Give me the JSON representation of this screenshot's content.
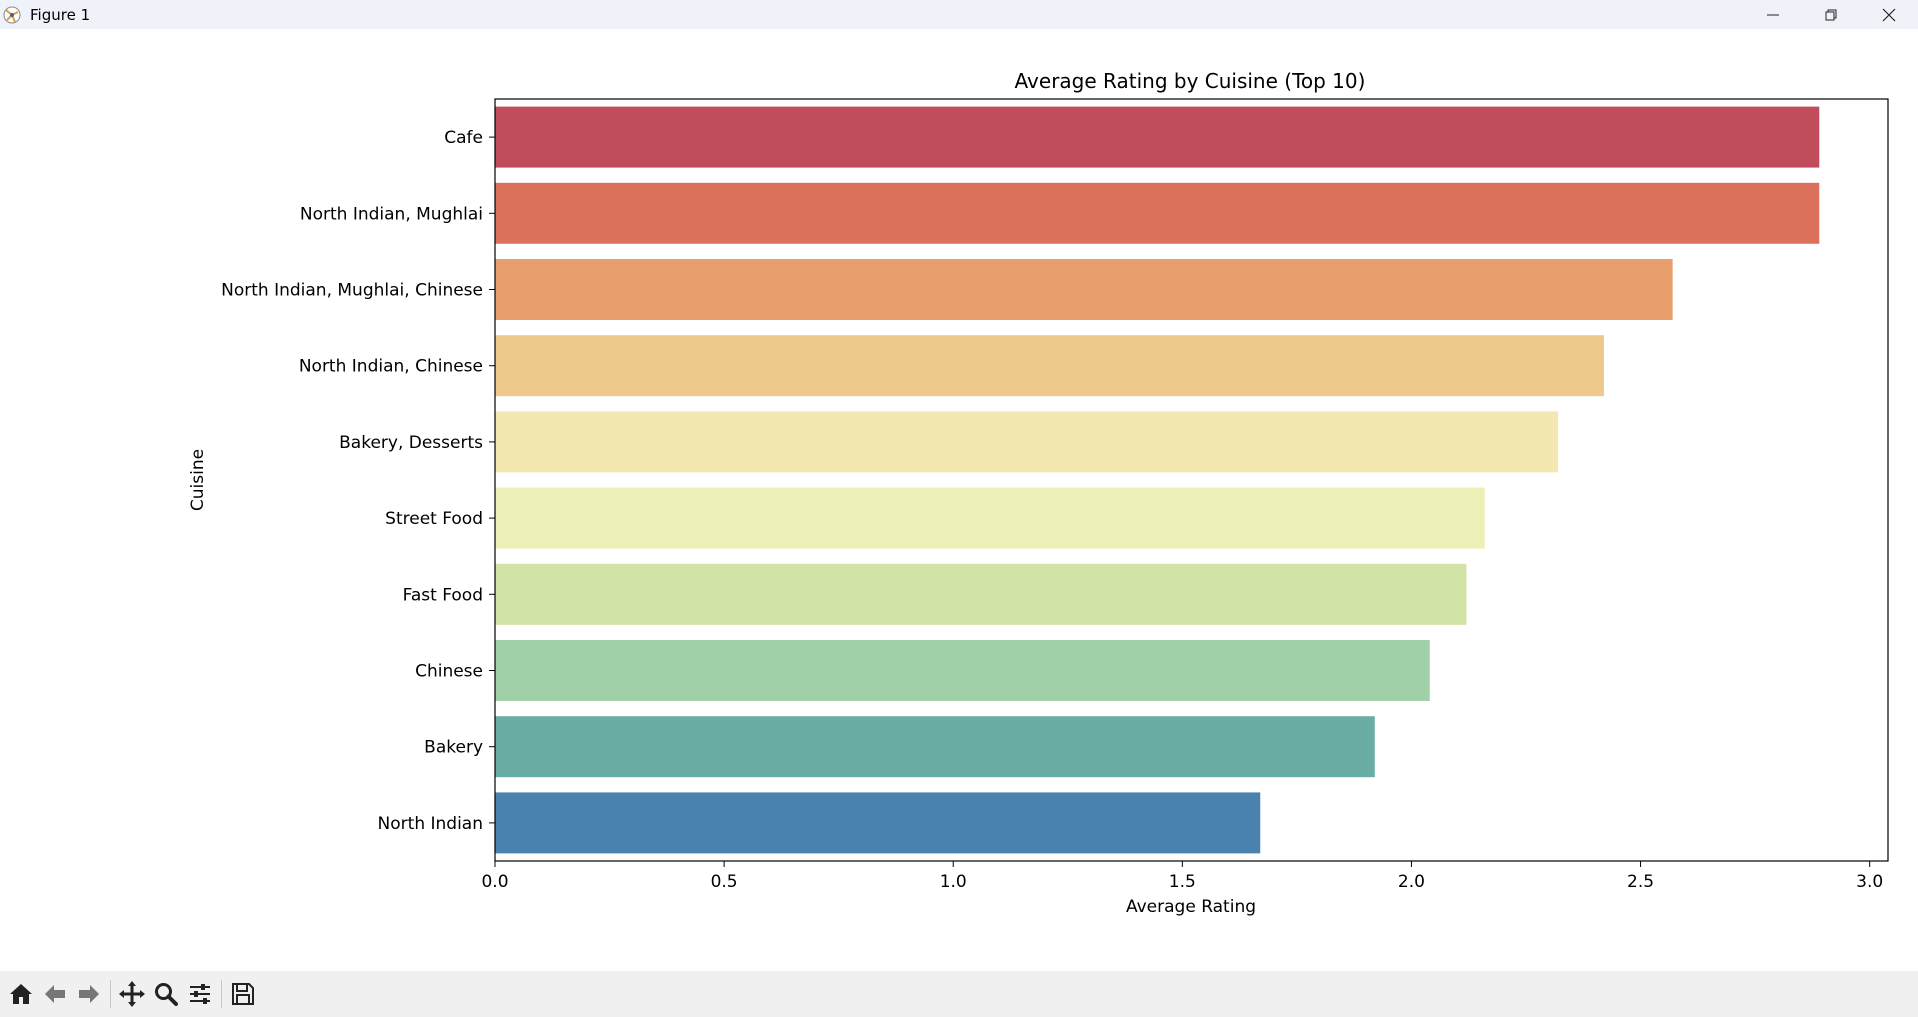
{
  "window": {
    "title": "Figure 1",
    "controls": [
      "minimize-icon",
      "restore-icon",
      "close-icon"
    ]
  },
  "toolbar": {
    "buttons": [
      "home-icon",
      "back-icon",
      "forward-icon",
      "pan-icon",
      "zoom-icon",
      "configure-subplots-icon",
      "save-icon"
    ]
  },
  "chart_data": {
    "type": "bar",
    "orientation": "horizontal",
    "title": "Average Rating by Cuisine (Top 10)",
    "xlabel": "Average Rating",
    "ylabel": "Cuisine",
    "xlim": [
      0,
      3.04
    ],
    "xticks": [
      "0.0",
      "0.5",
      "1.0",
      "1.5",
      "2.0",
      "2.5",
      "3.0"
    ],
    "grid": false,
    "categories": [
      "Cafe",
      "North Indian, Mughlai",
      "North Indian, Mughlai, Chinese",
      "North Indian, Chinese",
      "Bakery, Desserts",
      "Street Food",
      "Fast Food",
      "Chinese",
      "Bakery",
      "North Indian"
    ],
    "values": [
      2.89,
      2.89,
      2.57,
      2.42,
      2.32,
      2.16,
      2.12,
      2.04,
      1.92,
      1.67
    ],
    "colors": [
      "#c04c5c",
      "#db715b",
      "#e89f6d",
      "#edc98b",
      "#f4e8b1",
      "#ecf0b7",
      "#d1e3a5",
      "#a1cfa8",
      "#69ada4",
      "#4982ae"
    ]
  }
}
